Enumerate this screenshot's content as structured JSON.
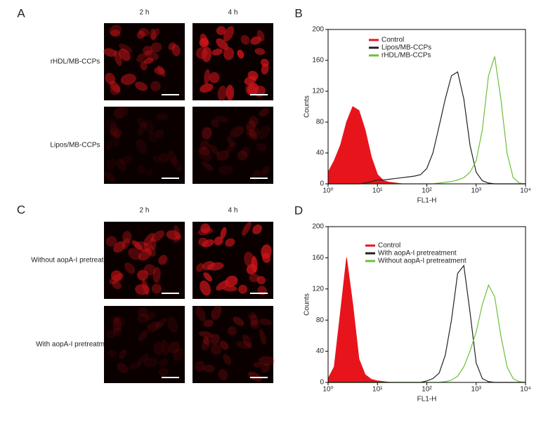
{
  "panels": [
    {
      "label": "A",
      "columns": [
        "2 h",
        "4 h"
      ],
      "rows": [
        "rHDL/MB-CCPs",
        "Lipos/MB-CCPs"
      ]
    },
    {
      "label": "C",
      "columns": [
        "2 h",
        "4 h"
      ],
      "rows": [
        "Without aopA-I pretreatment",
        "With aopA-I pretreatment"
      ]
    }
  ],
  "chart_data": [
    {
      "type": "line",
      "panel_label": "B",
      "xlabel": "FL1-H",
      "ylabel": "Counts",
      "xscale": "log",
      "x": [
        1,
        1.33,
        1.78,
        2.37,
        3.16,
        4.22,
        5.62,
        7.5,
        10,
        13.3,
        17.8,
        23.7,
        31.6,
        42.2,
        56.2,
        75,
        100,
        133,
        178,
        237,
        316,
        422,
        562,
        750,
        1000,
        1333,
        1778,
        2371,
        3162,
        4217,
        5623,
        7499,
        10000
      ],
      "xlim": [
        1,
        10000
      ],
      "xticks": [
        {
          "value": 1,
          "label": "10⁰"
        },
        {
          "value": 10,
          "label": "10¹"
        },
        {
          "value": 100,
          "label": "10²"
        },
        {
          "value": 1000,
          "label": "10³"
        },
        {
          "value": 10000,
          "label": "10⁴"
        }
      ],
      "ylim": [
        0,
        200
      ],
      "yticks": [
        0,
        40,
        80,
        120,
        160,
        200
      ],
      "series": [
        {
          "name": "Control",
          "color": "#e8141c",
          "fill": true,
          "values": [
            15,
            30,
            50,
            80,
            100,
            95,
            70,
            35,
            12,
            4,
            2,
            1,
            0,
            0,
            0,
            0,
            0,
            0,
            0,
            0,
            0,
            0,
            0,
            0,
            0,
            0,
            0,
            0,
            0,
            0,
            0,
            0,
            0
          ]
        },
        {
          "name": "Lipos/MB-CCPs",
          "color": "#222222",
          "fill": false,
          "values": [
            0,
            0,
            0,
            0,
            0,
            0,
            1,
            3,
            5,
            5,
            6,
            7,
            8,
            9,
            10,
            12,
            20,
            40,
            75,
            110,
            140,
            145,
            110,
            50,
            15,
            4,
            1,
            0,
            0,
            0,
            0,
            0,
            0
          ]
        },
        {
          "name": "rHDL/MB-CCPs",
          "color": "#6cbf3a",
          "fill": false,
          "values": [
            0,
            0,
            0,
            0,
            0,
            0,
            0,
            0,
            0,
            0,
            0,
            0,
            0,
            0,
            0,
            0,
            0,
            0,
            1,
            2,
            3,
            5,
            8,
            15,
            30,
            70,
            140,
            165,
            110,
            40,
            8,
            1,
            0
          ]
        }
      ]
    },
    {
      "type": "line",
      "panel_label": "D",
      "xlabel": "FL1-H",
      "ylabel": "Counts",
      "xscale": "log",
      "x": [
        1,
        1.33,
        1.78,
        2.37,
        3.16,
        4.22,
        5.62,
        7.5,
        10,
        13.3,
        17.8,
        23.7,
        31.6,
        42.2,
        56.2,
        75,
        100,
        133,
        178,
        237,
        316,
        422,
        562,
        750,
        1000,
        1333,
        1778,
        2371,
        3162,
        4217,
        5623,
        7499,
        10000
      ],
      "xlim": [
        1,
        10000
      ],
      "xticks": [
        {
          "value": 1,
          "label": "10⁰"
        },
        {
          "value": 10,
          "label": "10¹"
        },
        {
          "value": 100,
          "label": "10²"
        },
        {
          "value": 1000,
          "label": "10³"
        },
        {
          "value": 10000,
          "label": "10⁴"
        }
      ],
      "ylim": [
        0,
        200
      ],
      "yticks": [
        0,
        40,
        80,
        120,
        160,
        200
      ],
      "series": [
        {
          "name": "Control",
          "color": "#e8141c",
          "fill": true,
          "values": [
            5,
            20,
            90,
            160,
            100,
            30,
            10,
            4,
            2,
            1,
            0,
            0,
            0,
            0,
            0,
            0,
            0,
            0,
            0,
            0,
            0,
            0,
            0,
            0,
            0,
            0,
            0,
            0,
            0,
            0,
            0,
            0,
            0
          ]
        },
        {
          "name": "With aopA-I pretreatment",
          "color": "#222222",
          "fill": false,
          "values": [
            0,
            0,
            0,
            0,
            0,
            0,
            0,
            0,
            0,
            0,
            0,
            0,
            0,
            0,
            0,
            0,
            2,
            5,
            12,
            35,
            80,
            140,
            150,
            90,
            25,
            5,
            1,
            0,
            0,
            0,
            0,
            0,
            0
          ]
        },
        {
          "name": "Without aopA-I pretreatment",
          "color": "#6cbf3a",
          "fill": false,
          "values": [
            0,
            0,
            0,
            0,
            0,
            0,
            0,
            0,
            0,
            0,
            0,
            0,
            0,
            0,
            0,
            0,
            0,
            0,
            0,
            1,
            3,
            8,
            20,
            40,
            65,
            100,
            125,
            110,
            60,
            20,
            5,
            1,
            0
          ]
        }
      ]
    }
  ]
}
